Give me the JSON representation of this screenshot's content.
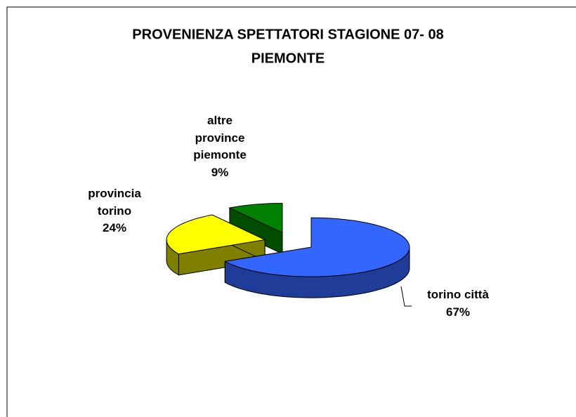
{
  "chart_data": {
    "type": "pie",
    "title": [
      "PROVENIENZA SPETTATORI STAGIONE 07- 08",
      "PIEMONTE"
    ],
    "categories": [
      "torino città",
      "provincia torino",
      "altre province piemonte"
    ],
    "values": [
      67,
      24,
      9
    ],
    "value_labels": [
      "67%",
      "24%",
      "9%"
    ],
    "colors": [
      "#3366ff",
      "#ffff00",
      "#008000"
    ],
    "side_colors": [
      "#1f3c99",
      "#808000",
      "#004d00"
    ]
  }
}
